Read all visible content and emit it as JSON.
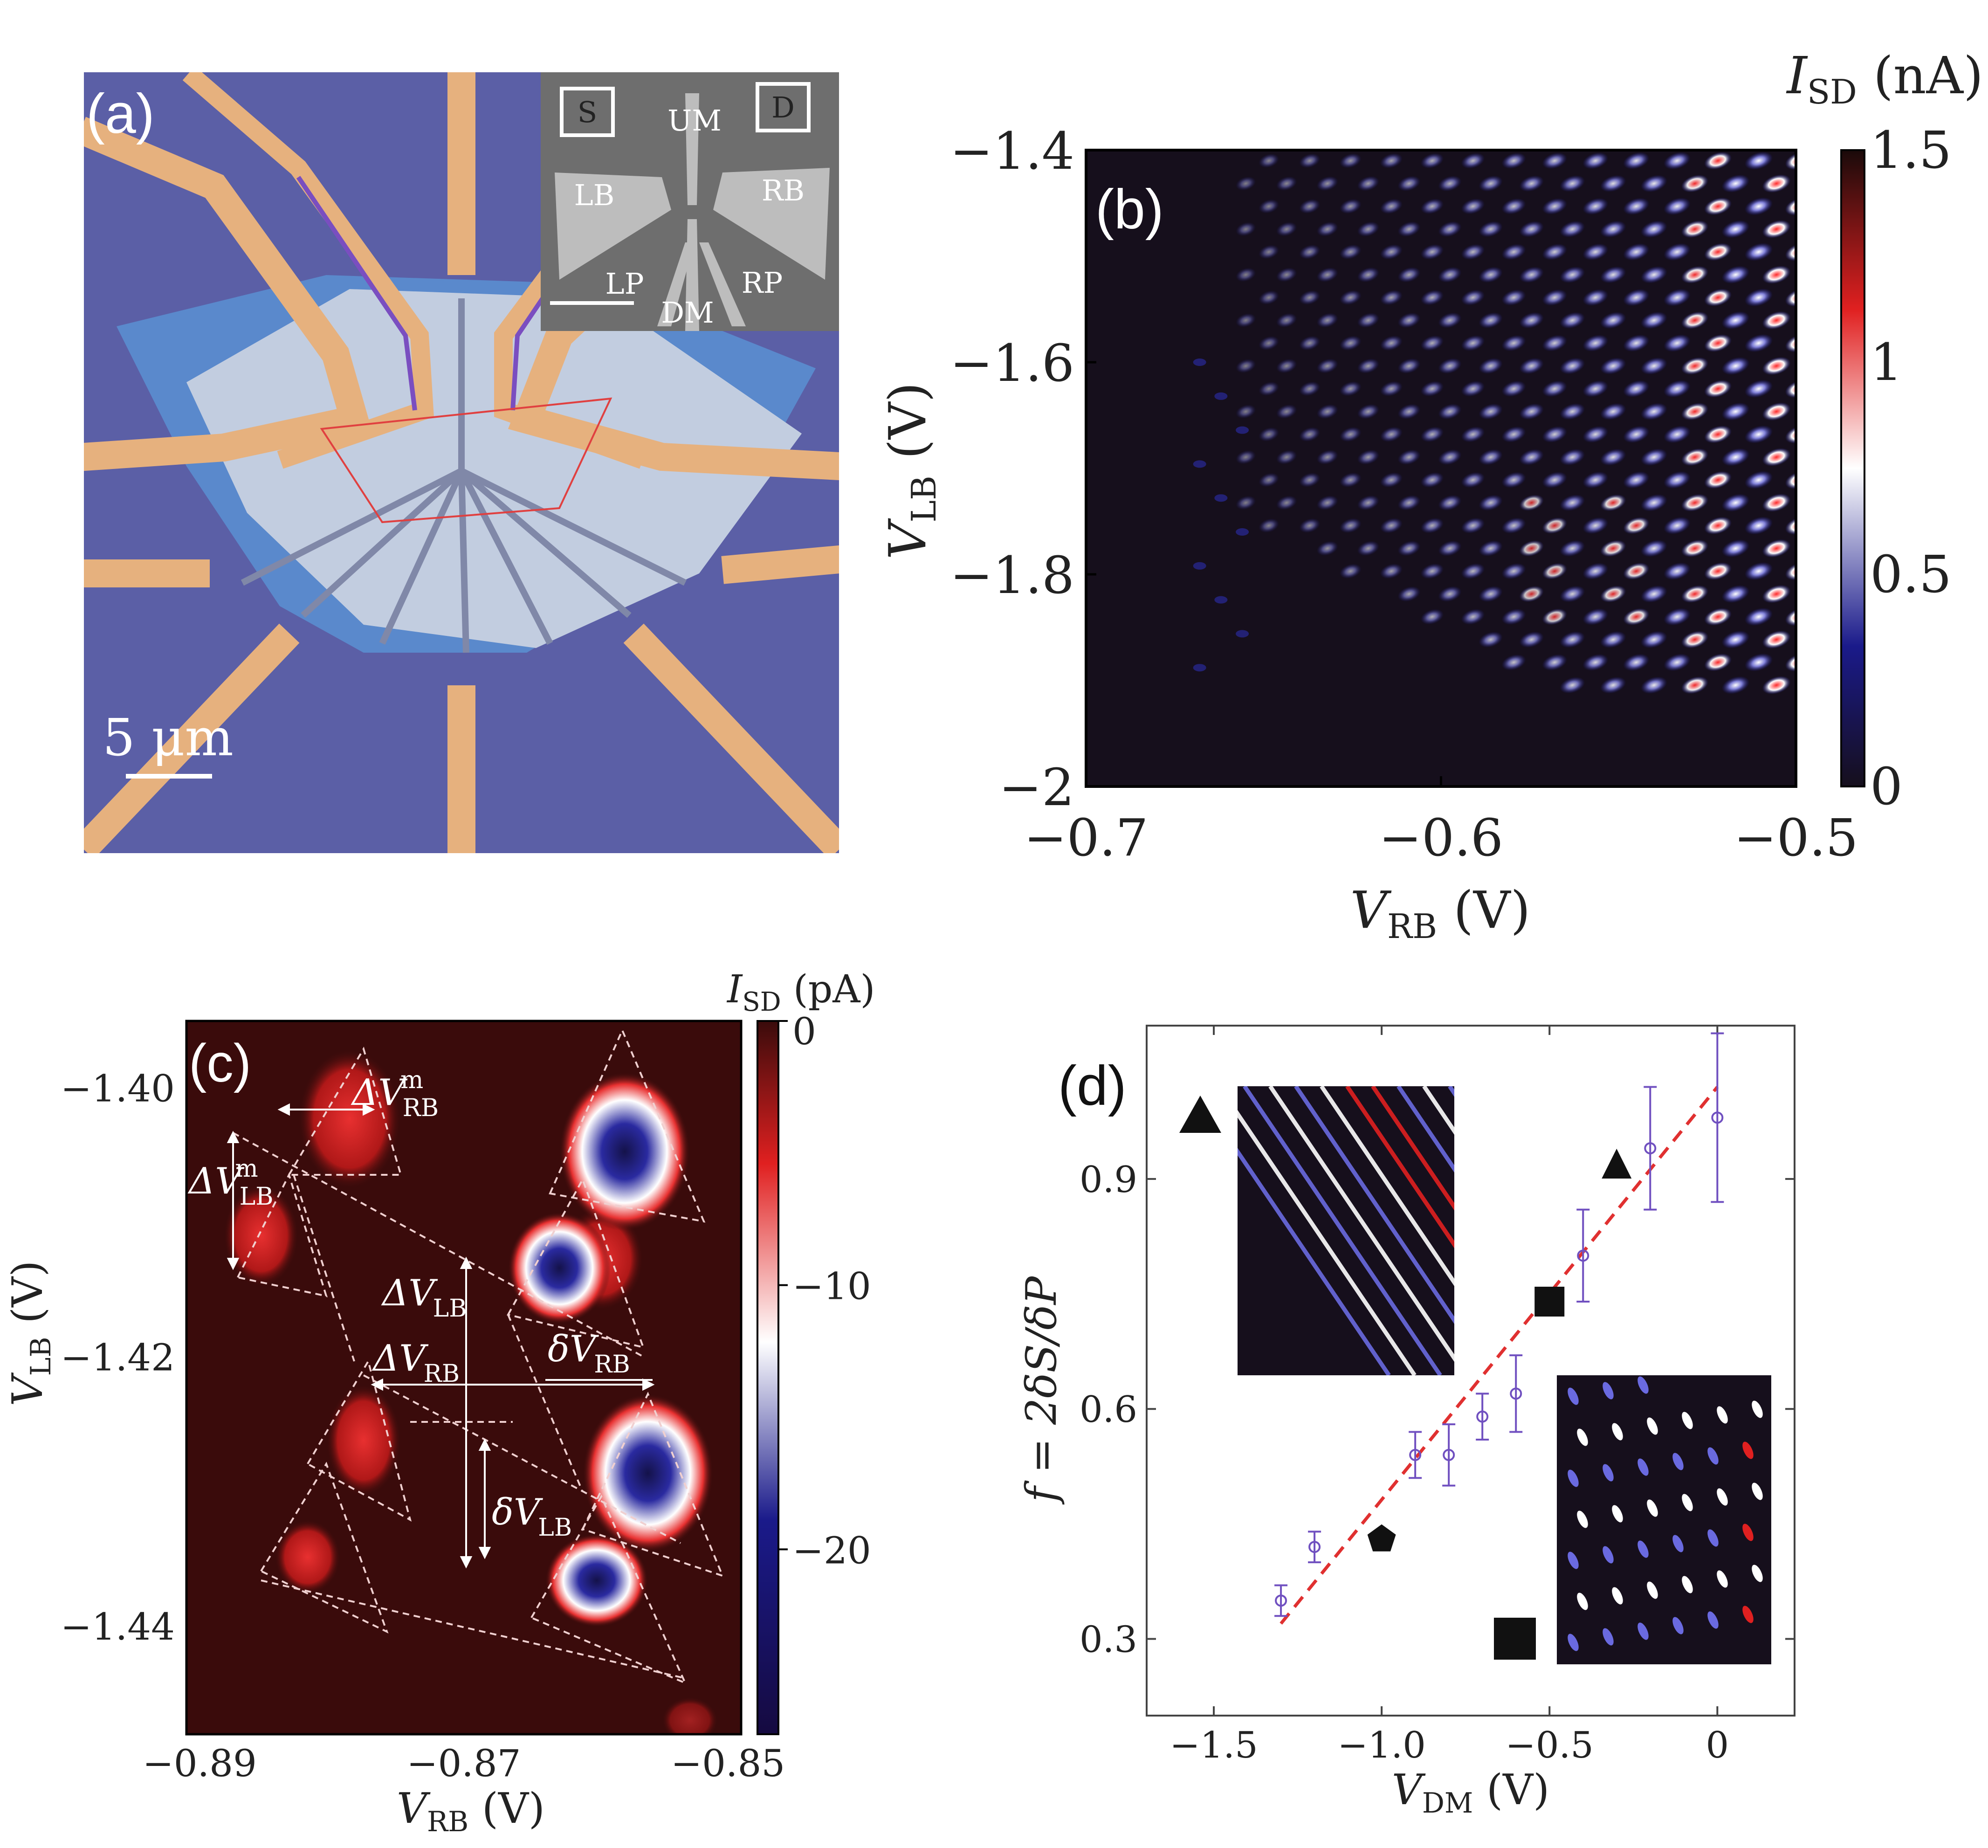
{
  "panels": {
    "a": {
      "label": "(a)",
      "scale_bar_label": "5 μm",
      "inset_labels": [
        "S",
        "UM",
        "D",
        "LB",
        "RB",
        "LP",
        "RP",
        "DM"
      ]
    },
    "b": {
      "label": "(b)",
      "ylabel": "V",
      "ylabel_sub": "LB",
      "ylabel_unit": " (V)",
      "xlabel": "V",
      "xlabel_sub": "RB",
      "xlabel_unit": " (V)",
      "colorbar_title": "I",
      "colorbar_title_sub": "SD",
      "colorbar_title_unit": " (nA)",
      "colorbar_ticks": [
        "1.5",
        "1",
        "0.5",
        "0"
      ],
      "xticks": [
        "−0.7",
        "−0.6",
        "−0.5"
      ],
      "yticks": [
        "−1.4",
        "−1.6",
        "−1.8",
        "−2"
      ]
    },
    "c": {
      "label": "(c)",
      "ylabel": "V",
      "ylabel_sub": "LB",
      "ylabel_unit": " (V)",
      "xlabel": "V",
      "xlabel_sub": "RB",
      "xlabel_unit": " (V)",
      "colorbar_title": "I",
      "colorbar_title_sub": "SD",
      "colorbar_title_unit": " (pA)",
      "colorbar_ticks": [
        "0",
        "−10",
        "−20"
      ],
      "xticks": [
        "−0.89",
        "−0.87",
        "−0.85"
      ],
      "yticks": [
        "−1.40",
        "−1.42",
        "−1.44"
      ],
      "annotations": {
        "dvrb_m": "ΔV",
        "dvrb_m_sub": "RB",
        "dvrb_m_sup": "m",
        "dvlb_m": "ΔV",
        "dvlb_m_sub": "LB",
        "dvlb_m_sup": "m",
        "dvlb": "ΔV",
        "dvlb_sub": "LB",
        "dvrb": "ΔV",
        "dvrb_sub": "RB",
        "sdvrb": "δV",
        "sdvrb_sub": "RB",
        "sdvlb": "δV",
        "sdvlb_sub": "LB"
      }
    },
    "d": {
      "label": "(d)",
      "ylabel": "f = 2δS/δP",
      "xlabel": "V",
      "xlabel_sub": "DM",
      "xlabel_unit": " (V)",
      "xticks": [
        "−1.5",
        "−1.0",
        "−0.5",
        "0"
      ],
      "yticks": [
        "0.3",
        "0.6",
        "0.9"
      ]
    }
  },
  "colors": {
    "substrate": "#5b5fa6",
    "gold": "#e6b17e",
    "flake": "#c2cde0",
    "map_dark_b": "#160f1c",
    "map_dark_c": "#3a0b0b",
    "map_blue": "#1a1a8a",
    "map_red": "#e02020",
    "fit_line": "#e03030",
    "data_point": "#7050c0"
  },
  "chart_data": [
    {
      "type": "heatmap",
      "panel": "b",
      "x_range": [
        -0.7,
        -0.5
      ],
      "y_range": [
        -2.0,
        -1.4
      ],
      "color_range": [
        0,
        1.5
      ],
      "colormap": [
        "#160f1c",
        "#1a1a8a",
        "#ffffff",
        "#e02020",
        "#1a0a0a"
      ],
      "xticks": [
        -0.7,
        -0.6,
        -0.5
      ],
      "yticks": [
        -1.4,
        -1.6,
        -1.8,
        -2.0
      ]
    },
    {
      "type": "heatmap",
      "panel": "c",
      "x_range": [
        -0.891,
        -0.849
      ],
      "y_range": [
        -1.448,
        -1.395
      ],
      "color_range": [
        -27,
        0
      ],
      "colormap": [
        "#150a40",
        "#1a1a8a",
        "#ffffff",
        "#e02020",
        "#3a0b0b"
      ],
      "xticks": [
        -0.89,
        -0.87,
        -0.85
      ],
      "yticks": [
        -1.4,
        -1.42,
        -1.44
      ],
      "cb_ticks": [
        0,
        -10,
        -20
      ]
    },
    {
      "type": "scatter",
      "panel": "d",
      "x": [
        -1.3,
        -1.2,
        -0.9,
        -0.8,
        -0.7,
        -0.6,
        -0.4,
        -0.2,
        0.0
      ],
      "y": [
        0.35,
        0.42,
        0.54,
        0.54,
        0.59,
        0.62,
        0.8,
        0.94,
        0.98
      ],
      "yerr": [
        0.02,
        0.02,
        0.03,
        0.04,
        0.03,
        0.05,
        0.06,
        0.08,
        0.11
      ],
      "fit_line": {
        "x": [
          -1.3,
          0.0
        ],
        "y": [
          0.32,
          1.02
        ]
      },
      "markers": [
        {
          "shape": "pentagon",
          "x": -1.0,
          "y": 0.43
        },
        {
          "shape": "square",
          "x": -0.5,
          "y": 0.74
        },
        {
          "shape": "triangle",
          "x": -0.3,
          "y": 0.92
        }
      ],
      "xlim": [
        -1.7,
        0.23
      ],
      "ylim": [
        0.2,
        1.1
      ],
      "xticks": [
        -1.5,
        -1.0,
        -0.5,
        0
      ],
      "yticks": [
        0.3,
        0.6,
        0.9
      ]
    }
  ]
}
